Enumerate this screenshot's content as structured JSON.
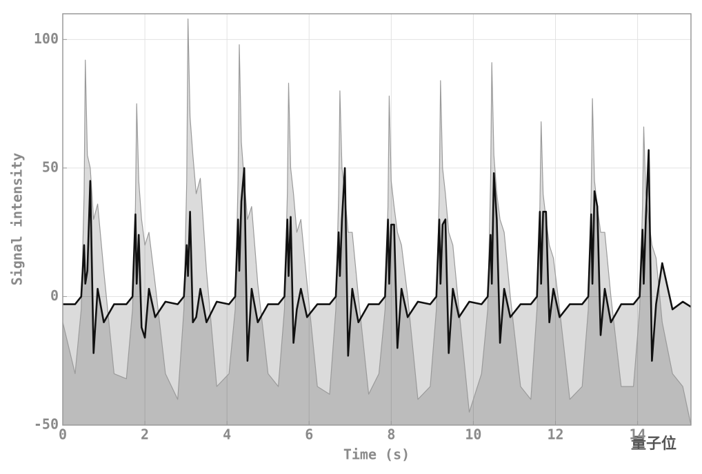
{
  "chart_data": {
    "type": "line",
    "x_label": "Time (s)",
    "y_label": "Signal intensity",
    "watermark": "量子位",
    "x": [
      0,
      0.3,
      0.45,
      0.52,
      0.55,
      0.6,
      0.67,
      0.75,
      0.85,
      1.0,
      1.25,
      1.55,
      1.7,
      1.77,
      1.8,
      1.85,
      1.92,
      2.0,
      2.1,
      2.25,
      2.5,
      2.8,
      2.95,
      3.02,
      3.05,
      3.1,
      3.17,
      3.25,
      3.35,
      3.5,
      3.75,
      4.05,
      4.2,
      4.27,
      4.3,
      4.35,
      4.42,
      4.5,
      4.6,
      4.75,
      5.0,
      5.25,
      5.4,
      5.47,
      5.5,
      5.55,
      5.62,
      5.7,
      5.8,
      5.95,
      6.2,
      6.5,
      6.65,
      6.72,
      6.75,
      6.8,
      6.87,
      6.95,
      7.05,
      7.2,
      7.45,
      7.7,
      7.85,
      7.92,
      7.95,
      8.0,
      8.07,
      8.15,
      8.25,
      8.4,
      8.65,
      8.95,
      9.1,
      9.17,
      9.2,
      9.25,
      9.32,
      9.4,
      9.5,
      9.65,
      9.9,
      10.2,
      10.35,
      10.42,
      10.45,
      10.5,
      10.57,
      10.65,
      10.75,
      10.9,
      11.15,
      11.4,
      11.55,
      11.62,
      11.65,
      11.7,
      11.77,
      11.85,
      11.95,
      12.1,
      12.35,
      12.65,
      12.8,
      12.87,
      12.9,
      12.95,
      13.02,
      13.1,
      13.2,
      13.35,
      13.6,
      13.9,
      14.05,
      14.12,
      14.15,
      14.2,
      14.27,
      14.35,
      14.45,
      14.6,
      14.85,
      15.1,
      15.3
    ],
    "series": [
      {
        "color": "#9a9a9a",
        "values": [
          -10,
          -30,
          -5,
          40,
          92,
          55,
          50,
          30,
          36,
          10,
          -30,
          -32,
          -5,
          35,
          75,
          45,
          30,
          20,
          25,
          5,
          -30,
          -40,
          -5,
          45,
          108,
          70,
          55,
          40,
          46,
          10,
          -35,
          -30,
          -5,
          45,
          98,
          60,
          45,
          30,
          35,
          5,
          -30,
          -35,
          -5,
          40,
          83,
          50,
          40,
          25,
          30,
          5,
          -35,
          -38,
          -5,
          40,
          80,
          50,
          40,
          25,
          25,
          0,
          -38,
          -30,
          -5,
          35,
          78,
          45,
          35,
          25,
          20,
          0,
          -40,
          -35,
          -5,
          40,
          84,
          50,
          40,
          25,
          20,
          -5,
          -45,
          -30,
          -5,
          45,
          91,
          55,
          40,
          30,
          25,
          0,
          -35,
          -40,
          -5,
          35,
          68,
          40,
          30,
          20,
          15,
          -5,
          -40,
          -35,
          -5,
          40,
          77,
          45,
          35,
          25,
          25,
          0,
          -35,
          -35,
          -5,
          35,
          66,
          40,
          30,
          20,
          15,
          -10,
          -30,
          -35,
          -50
        ]
      },
      {
        "color": "#111111",
        "values": [
          -3,
          -3,
          0,
          20,
          5,
          10,
          45,
          -22,
          3,
          -10,
          -3,
          -3,
          0,
          32,
          5,
          24,
          -12,
          -16,
          3,
          -8,
          -2,
          -3,
          0,
          20,
          8,
          33,
          -10,
          -8,
          3,
          -10,
          -2,
          -3,
          0,
          30,
          10,
          37,
          50,
          -25,
          3,
          -10,
          -3,
          -3,
          0,
          30,
          8,
          31,
          -18,
          -5,
          3,
          -8,
          -3,
          -3,
          0,
          25,
          8,
          30,
          50,
          -23,
          3,
          -10,
          -3,
          -3,
          0,
          30,
          5,
          28,
          28,
          -20,
          3,
          -8,
          -2,
          -3,
          0,
          30,
          5,
          28,
          30,
          -22,
          3,
          -8,
          -2,
          -3,
          0,
          24,
          5,
          48,
          30,
          -18,
          3,
          -8,
          -3,
          -3,
          0,
          33,
          5,
          33,
          33,
          -10,
          3,
          -8,
          -3,
          -3,
          0,
          32,
          5,
          41,
          35,
          -15,
          3,
          -10,
          -3,
          -3,
          0,
          26,
          5,
          30,
          57,
          -25,
          -3,
          13,
          -5,
          -2,
          -4
        ]
      }
    ],
    "xlim": [
      0,
      15.3
    ],
    "ylim": [
      -50,
      110
    ],
    "xticks": [
      0,
      2,
      4,
      6,
      8,
      10,
      12,
      14
    ],
    "yticks": [
      -50,
      0,
      50,
      100
    ],
    "grid": true
  }
}
